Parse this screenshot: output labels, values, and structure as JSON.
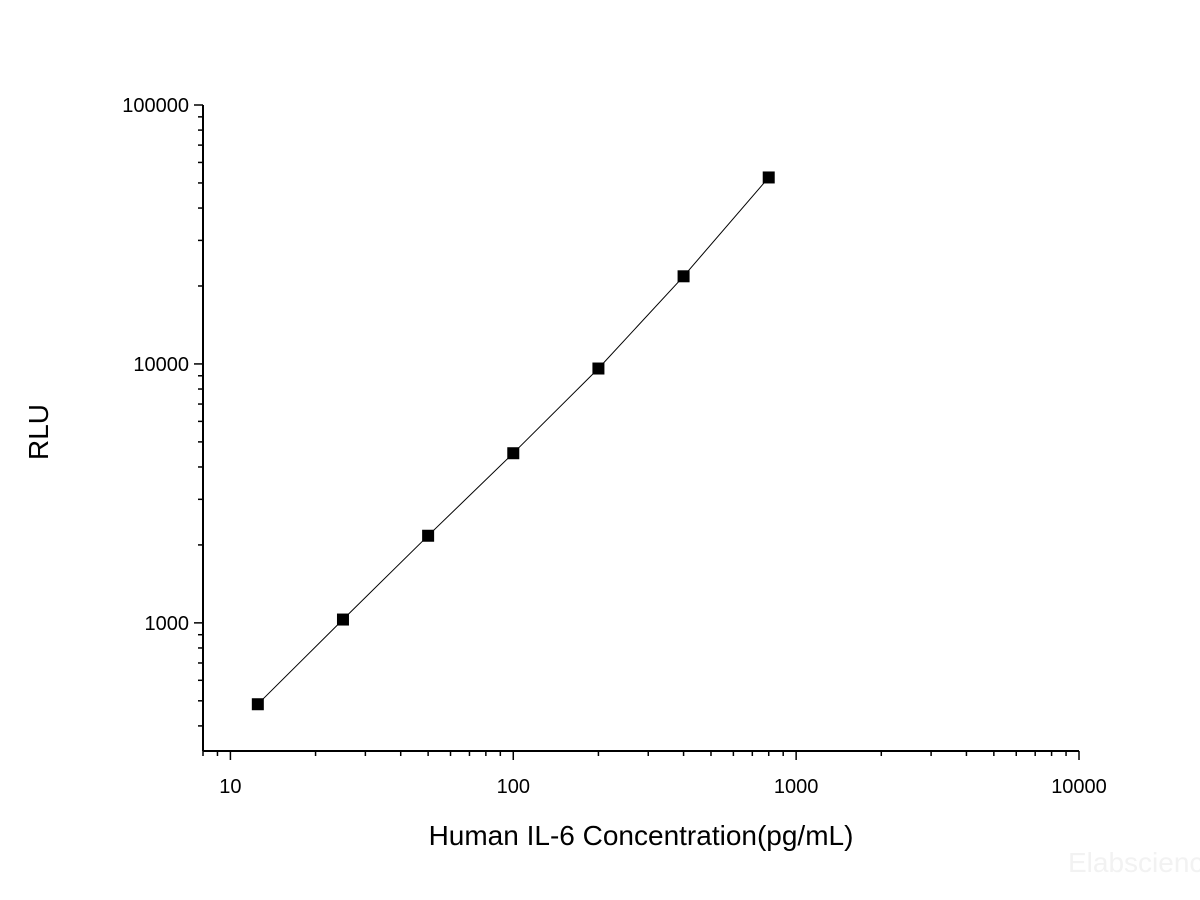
{
  "chart_data": {
    "type": "scatter",
    "title": "",
    "xlabel": "Human IL-6 Concentration(pg/mL)",
    "ylabel": "RLU",
    "x_scale": "log",
    "y_scale": "log",
    "xlim": [
      8,
      10000
    ],
    "ylim": [
      320,
      100000
    ],
    "x_ticks": [
      {
        "value": 10,
        "label": "10"
      },
      {
        "value": 100,
        "label": "100"
      },
      {
        "value": 1000,
        "label": "1000"
      },
      {
        "value": 10000,
        "label": "10000"
      }
    ],
    "y_ticks": [
      {
        "value": 1000,
        "label": "1000"
      },
      {
        "value": 10000,
        "label": "10000"
      },
      {
        "value": 100000,
        "label": "100000"
      }
    ],
    "grid": false,
    "legend": "none",
    "series": [
      {
        "marker": "square",
        "connected": true,
        "color": "#000000",
        "points": [
          {
            "x": 12.5,
            "y": 485
          },
          {
            "x": 25,
            "y": 1030
          },
          {
            "x": 50,
            "y": 2170
          },
          {
            "x": 100,
            "y": 4520
          },
          {
            "x": 200,
            "y": 9600
          },
          {
            "x": 400,
            "y": 21800
          },
          {
            "x": 800,
            "y": 52500
          }
        ]
      }
    ]
  },
  "watermark": "Elabscience"
}
